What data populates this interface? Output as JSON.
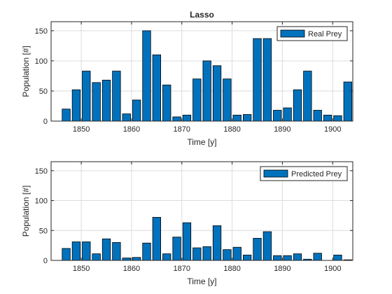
{
  "chart_data": [
    {
      "type": "bar",
      "title": "Lasso",
      "xlabel": "Time [y]",
      "ylabel": "Population [#]",
      "xlim": [
        1844,
        1904
      ],
      "ylim": [
        0,
        165
      ],
      "xticks": [
        1850,
        1860,
        1870,
        1880,
        1890,
        1900
      ],
      "yticks": [
        0,
        50,
        100,
        150
      ],
      "grid": true,
      "legend_position": "top-right",
      "bar_color": "#0072BD",
      "x": [
        1847,
        1849,
        1851,
        1853,
        1855,
        1857,
        1859,
        1861,
        1863,
        1865,
        1867,
        1869,
        1871,
        1873,
        1875,
        1877,
        1879,
        1881,
        1883,
        1885,
        1887,
        1889,
        1891,
        1893,
        1895,
        1897,
        1899,
        1901,
        1903
      ],
      "series": [
        {
          "name": "Real Prey",
          "values": [
            20,
            52,
            83,
            64,
            68,
            83,
            12,
            35,
            150,
            110,
            60,
            7,
            10,
            70,
            100,
            92,
            70,
            10,
            11,
            137,
            137,
            18,
            22,
            52,
            83,
            18,
            10,
            9,
            65
          ]
        }
      ]
    },
    {
      "type": "bar",
      "title": "",
      "xlabel": "Time [y]",
      "ylabel": "Population [#]",
      "xlim": [
        1844,
        1904
      ],
      "ylim": [
        0,
        165
      ],
      "xticks": [
        1850,
        1860,
        1870,
        1880,
        1890,
        1900
      ],
      "yticks": [
        0,
        50,
        100,
        150
      ],
      "grid": true,
      "legend_position": "top-right",
      "bar_color": "#0072BD",
      "x": [
        1847,
        1849,
        1851,
        1853,
        1855,
        1857,
        1859,
        1861,
        1863,
        1865,
        1867,
        1869,
        1871,
        1873,
        1875,
        1877,
        1879,
        1881,
        1883,
        1885,
        1887,
        1889,
        1891,
        1893,
        1895,
        1897,
        1899,
        1901,
        1903
      ],
      "series": [
        {
          "name": "Predicted Prey",
          "values": [
            20,
            31,
            31,
            11,
            36,
            30,
            4,
            5,
            29,
            72,
            11,
            39,
            63,
            21,
            23,
            58,
            18,
            22,
            9,
            37,
            48,
            8,
            8,
            11,
            2,
            12,
            0,
            9,
            1
          ]
        }
      ]
    }
  ]
}
